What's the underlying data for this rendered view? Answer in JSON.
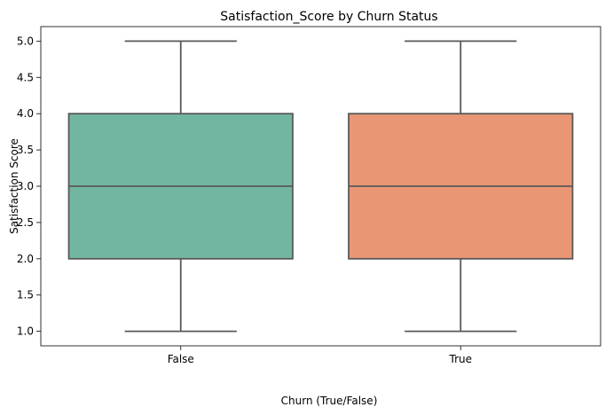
{
  "chart_data": {
    "type": "box",
    "title": "Satisfaction_Score by Churn Status",
    "xlabel": "Churn (True/False)",
    "ylabel": "Satisfaction Score",
    "ylim": [
      0.8,
      5.2
    ],
    "yticks": [
      "1.0",
      "1.5",
      "2.0",
      "2.5",
      "3.0",
      "3.5",
      "4.0",
      "4.5",
      "5.0"
    ],
    "grid": false,
    "categories": [
      "False",
      "True"
    ],
    "boxes": [
      {
        "category": "False",
        "min": 1.0,
        "q1": 2.0,
        "median": 3.0,
        "q3": 4.0,
        "max": 5.0,
        "color": "#72b6a1"
      },
      {
        "category": "True",
        "min": 1.0,
        "q1": 2.0,
        "median": 3.0,
        "q3": 4.0,
        "max": 5.0,
        "color": "#e99675"
      }
    ],
    "line_color": "#595959"
  }
}
